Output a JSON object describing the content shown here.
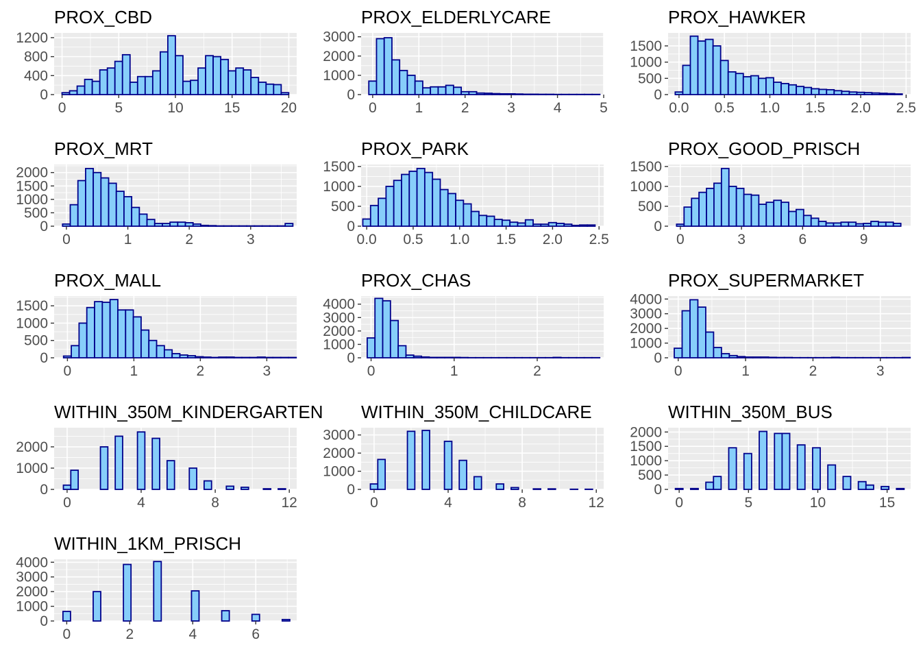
{
  "chart_data": [
    {
      "type": "bar",
      "title": "PROX_CBD",
      "bin_width": 0.6667,
      "x_first": 0.33,
      "values": [
        40,
        80,
        180,
        320,
        280,
        520,
        560,
        700,
        840,
        260,
        380,
        380,
        500,
        900,
        1240,
        820,
        280,
        300,
        560,
        820,
        800,
        740,
        500,
        560,
        520,
        360,
        260,
        220,
        210,
        40
      ],
      "xlim": [
        -0.7,
        20.7
      ],
      "ylim": [
        0,
        1300
      ],
      "x_ticks": [
        0,
        5,
        10,
        15,
        20
      ],
      "x_tick_labels": [
        "0",
        "5",
        "10",
        "15",
        "20"
      ],
      "y_ticks": [
        0,
        400,
        800,
        1200
      ],
      "y_tick_labels": [
        "0",
        "400",
        "800",
        "1200"
      ]
    },
    {
      "type": "bar",
      "title": "PROX_ELDERLYCARE",
      "bin_width": 0.1667,
      "x_first": 0.0,
      "values": [
        700,
        2900,
        2950,
        1800,
        1250,
        1000,
        700,
        350,
        400,
        400,
        480,
        380,
        150,
        150,
        80,
        70,
        50,
        40,
        40,
        30,
        20,
        20,
        15,
        15,
        10,
        10,
        10,
        10,
        10,
        10
      ],
      "xlim": [
        -0.25,
        5.0
      ],
      "ylim": [
        0,
        3200
      ],
      "x_ticks": [
        0,
        1,
        2,
        3,
        4,
        5
      ],
      "x_tick_labels": [
        "0",
        "1",
        "2",
        "3",
        "4",
        "5"
      ],
      "y_ticks": [
        0,
        1000,
        2000,
        3000
      ],
      "y_tick_labels": [
        "0",
        "1000",
        "2000",
        "3000"
      ]
    },
    {
      "type": "bar",
      "title": "PROX_HAWKER",
      "bin_width": 0.0833,
      "x_first": 0.0,
      "values": [
        80,
        900,
        1800,
        1650,
        1700,
        1500,
        1050,
        700,
        650,
        550,
        580,
        500,
        520,
        380,
        340,
        300,
        250,
        220,
        180,
        160,
        150,
        120,
        100,
        80,
        70,
        60,
        50,
        40,
        30,
        20
      ],
      "xlim": [
        -0.12,
        2.55
      ],
      "ylim": [
        0,
        1900
      ],
      "x_ticks": [
        0,
        0.5,
        1.0,
        1.5,
        2.0,
        2.5
      ],
      "x_tick_labels": [
        "0.0",
        "0.5",
        "1.0",
        "1.5",
        "2.0",
        "2.5"
      ],
      "y_ticks": [
        0,
        500,
        1000,
        1500
      ],
      "y_tick_labels": [
        "0",
        "500",
        "1000",
        "1500"
      ]
    },
    {
      "type": "bar",
      "title": "PROX_MRT",
      "bin_width": 0.125,
      "x_first": 0.0,
      "values": [
        80,
        800,
        1700,
        2150,
        2000,
        1800,
        1600,
        1300,
        1100,
        700,
        450,
        250,
        100,
        100,
        150,
        150,
        130,
        80,
        30,
        20,
        10,
        10,
        10,
        10,
        10,
        10,
        10,
        10,
        10,
        100
      ],
      "xlim": [
        -0.2,
        3.75
      ],
      "ylim": [
        0,
        2300
      ],
      "x_ticks": [
        0,
        1,
        2,
        3
      ],
      "x_tick_labels": [
        "0",
        "1",
        "2",
        "3"
      ],
      "y_ticks": [
        0,
        500,
        1000,
        1500,
        2000
      ],
      "y_tick_labels": [
        "0",
        "500",
        "1000",
        "1500",
        "2000"
      ]
    },
    {
      "type": "bar",
      "title": "PROX_PARK",
      "bin_width": 0.0833,
      "x_first": 0.0,
      "values": [
        180,
        520,
        700,
        1000,
        1150,
        1300,
        1380,
        1450,
        1350,
        1180,
        920,
        820,
        650,
        560,
        370,
        270,
        250,
        170,
        150,
        100,
        80,
        160,
        50,
        50,
        90,
        70,
        50,
        20,
        30,
        30
      ],
      "xlim": [
        -0.06,
        2.55
      ],
      "ylim": [
        0,
        1550
      ],
      "x_ticks": [
        0,
        0.5,
        1.0,
        1.5,
        2.0,
        2.5
      ],
      "x_tick_labels": [
        "0.0",
        "0.5",
        "1.0",
        "1.5",
        "2.0",
        "2.5"
      ],
      "y_ticks": [
        0,
        500,
        1000,
        1500
      ],
      "y_tick_labels": [
        "0",
        "500",
        "1000",
        "1500"
      ]
    },
    {
      "type": "bar",
      "title": "PROX_GOOD_PRISCH",
      "bin_width": 0.3667,
      "x_first": 0.0,
      "values": [
        50,
        480,
        700,
        850,
        950,
        1080,
        1450,
        1000,
        950,
        800,
        780,
        550,
        600,
        650,
        600,
        370,
        420,
        270,
        200,
        120,
        80,
        80,
        100,
        100,
        60,
        70,
        120,
        100,
        100,
        70
      ],
      "xlim": [
        -0.6,
        11.3
      ],
      "ylim": [
        0,
        1550
      ],
      "x_ticks": [
        0,
        3,
        6,
        9
      ],
      "x_tick_labels": [
        "0",
        "3",
        "6",
        "9"
      ],
      "y_ticks": [
        0,
        500,
        1000,
        1500
      ],
      "y_tick_labels": [
        "0",
        "500",
        "1000",
        "1500"
      ]
    },
    {
      "type": "bar",
      "title": "PROX_MALL",
      "bin_width": 0.1167,
      "x_first": 0.0,
      "values": [
        50,
        350,
        1000,
        1450,
        1620,
        1600,
        1680,
        1380,
        1380,
        1180,
        800,
        500,
        350,
        230,
        120,
        80,
        60,
        30,
        20,
        10,
        20,
        20,
        10,
        10,
        10,
        20,
        10,
        10,
        10,
        10
      ],
      "xlim": [
        -0.2,
        3.45
      ],
      "ylim": [
        0,
        1780
      ],
      "x_ticks": [
        0,
        1,
        2,
        3
      ],
      "x_tick_labels": [
        "0",
        "1",
        "2",
        "3"
      ],
      "y_ticks": [
        0,
        500,
        1000,
        1500
      ],
      "y_tick_labels": [
        "0",
        "500",
        "1000",
        "1500"
      ]
    },
    {
      "type": "bar",
      "title": "PROX_CHAS",
      "bin_width": 0.0933,
      "x_first": 0.0,
      "values": [
        1480,
        4430,
        4250,
        2780,
        900,
        200,
        120,
        60,
        30,
        30,
        30,
        30,
        20,
        10,
        10,
        10,
        10,
        10,
        10,
        10,
        10,
        10,
        10,
        10,
        30,
        10,
        10,
        10,
        10,
        10
      ],
      "xlim": [
        -0.12,
        2.8
      ],
      "ylim": [
        0,
        4600
      ],
      "x_ticks": [
        0,
        1,
        2
      ],
      "x_tick_labels": [
        "0",
        "1",
        "2"
      ],
      "y_ticks": [
        0,
        1000,
        2000,
        3000,
        4000
      ],
      "y_tick_labels": [
        "0",
        "1000",
        "2000",
        "3000",
        "4000"
      ]
    },
    {
      "type": "bar",
      "title": "PROX_SUPERMARKET",
      "bin_width": 0.1167,
      "x_first": 0.0,
      "values": [
        650,
        3200,
        3950,
        3450,
        1750,
        700,
        280,
        150,
        80,
        50,
        50,
        50,
        30,
        20,
        20,
        10,
        10,
        10,
        10,
        10,
        30,
        10,
        10,
        10,
        10,
        10,
        10,
        10,
        10,
        20
      ],
      "xlim": [
        -0.15,
        3.45
      ],
      "ylim": [
        0,
        4200
      ],
      "x_ticks": [
        0,
        1,
        2,
        3
      ],
      "x_tick_labels": [
        "0",
        "1",
        "2",
        "3"
      ],
      "y_ticks": [
        0,
        1000,
        2000,
        3000,
        4000
      ],
      "y_tick_labels": [
        "0",
        "1000",
        "2000",
        "3000",
        "4000"
      ]
    },
    {
      "type": "bar",
      "title": "WITHIN_350M_KINDERGARTEN",
      "bin_width": 0.4,
      "x_first": 0.0,
      "values": [
        200,
        900,
        0,
        0,
        0,
        2000,
        0,
        2500,
        0,
        0,
        2700,
        0,
        2400,
        0,
        1350,
        0,
        0,
        1000,
        0,
        400,
        0,
        0,
        150,
        0,
        100,
        0,
        0,
        30,
        0,
        30
      ],
      "xlim": [
        -0.7,
        12.4
      ],
      "ylim": [
        0,
        2900
      ],
      "x_ticks": [
        0,
        4,
        8,
        12
      ],
      "x_tick_labels": [
        "0",
        "4",
        "8",
        "12"
      ],
      "y_ticks": [
        0,
        1000,
        2000
      ],
      "y_tick_labels": [
        "0",
        "1000",
        "2000"
      ]
    },
    {
      "type": "bar",
      "title": "WITHIN_350M_CHILDCARE",
      "bin_width": 0.4,
      "x_first": 0.0,
      "values": [
        300,
        1650,
        0,
        0,
        0,
        3200,
        0,
        3250,
        0,
        0,
        2650,
        0,
        1600,
        0,
        700,
        0,
        0,
        300,
        0,
        100,
        0,
        0,
        30,
        0,
        30,
        0,
        0,
        10,
        0,
        10
      ],
      "xlim": [
        -0.7,
        12.4
      ],
      "ylim": [
        0,
        3400
      ],
      "x_ticks": [
        0,
        4,
        8,
        12
      ],
      "x_tick_labels": [
        "0",
        "4",
        "8",
        "12"
      ],
      "y_ticks": [
        0,
        1000,
        2000,
        3000
      ],
      "y_tick_labels": [
        "0",
        "1000",
        "2000",
        "3000"
      ]
    },
    {
      "type": "bar",
      "title": "WITHIN_350M_BUS",
      "bin_width": 0.55,
      "x_first": 0.0,
      "values": [
        30,
        0,
        30,
        0,
        250,
        450,
        0,
        1450,
        0,
        1250,
        0,
        2020,
        0,
        1950,
        1950,
        0,
        1550,
        0,
        1450,
        0,
        850,
        0,
        450,
        0,
        270,
        150,
        0,
        100,
        0,
        30
      ],
      "xlim": [
        -0.8,
        16.7
      ],
      "ylim": [
        0,
        2150
      ],
      "x_ticks": [
        0,
        5,
        10,
        15
      ],
      "x_tick_labels": [
        "0",
        "5",
        "10",
        "15"
      ],
      "y_ticks": [
        0,
        500,
        1000,
        1500,
        2000
      ],
      "y_tick_labels": [
        "0",
        "500",
        "1000",
        "1500",
        "2000"
      ]
    },
    {
      "type": "bar",
      "title": "WITHIN_1KM_PRISCH",
      "bin_width": 0.24,
      "x_first": 0.0,
      "values": [
        650,
        0,
        0,
        0,
        2000,
        0,
        0,
        0,
        3850,
        0,
        0,
        0,
        4050,
        0,
        0,
        0,
        0,
        2050,
        0,
        0,
        0,
        700,
        0,
        0,
        0,
        450,
        0,
        0,
        0,
        100
      ],
      "xlim": [
        -0.4,
        7.3
      ],
      "ylim": [
        0,
        4200
      ],
      "x_ticks": [
        0,
        2,
        4,
        6
      ],
      "x_tick_labels": [
        "0",
        "2",
        "4",
        "6"
      ],
      "y_ticks": [
        0,
        1000,
        2000,
        3000,
        4000
      ],
      "y_tick_labels": [
        "0",
        "1000",
        "2000",
        "3000",
        "4000"
      ]
    }
  ]
}
